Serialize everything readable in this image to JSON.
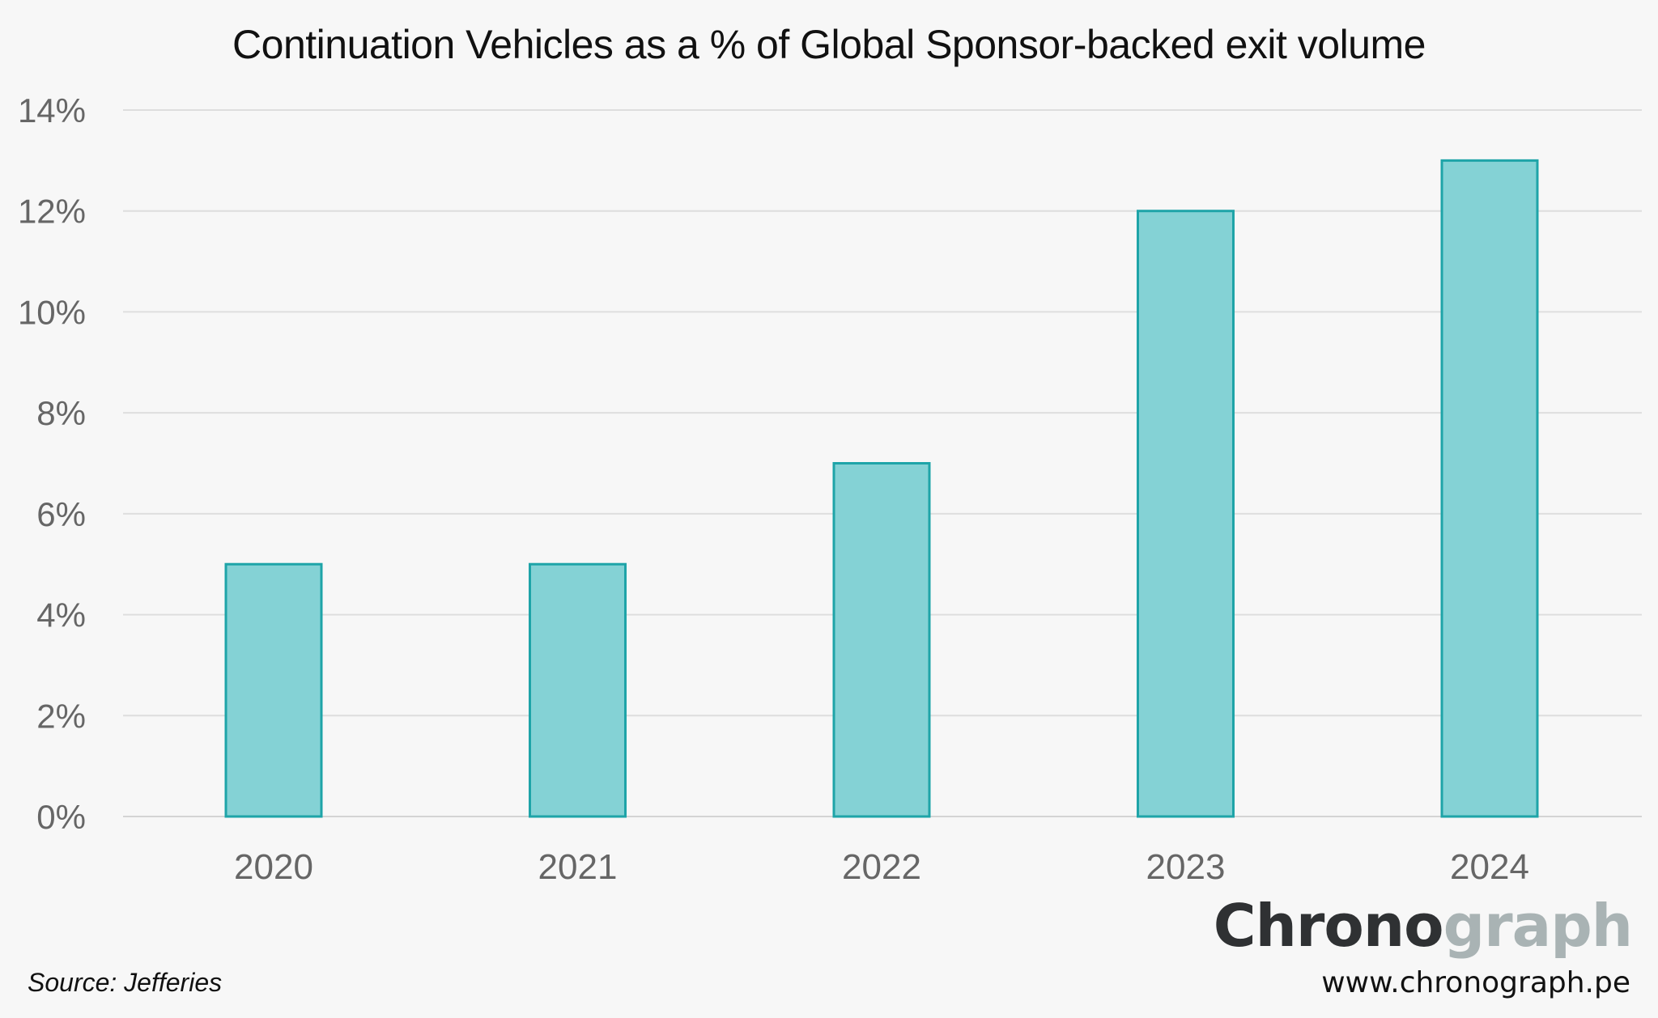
{
  "chart_data": {
    "type": "bar",
    "title": "Continuation Vehicles as a % of Global Sponsor-backed exit volume",
    "categories": [
      "2020",
      "2021",
      "2022",
      "2023",
      "2024"
    ],
    "values": [
      5,
      5,
      7,
      12,
      13
    ],
    "unit": "%",
    "ylim": [
      0,
      14
    ],
    "yticks": [
      0,
      2,
      4,
      6,
      8,
      10,
      12,
      14
    ],
    "ytick_labels": [
      "0%",
      "2%",
      "4%",
      "6%",
      "8%",
      "10%",
      "12%",
      "14%"
    ],
    "xlabel": "",
    "ylabel": "",
    "grid": true,
    "legend": "none"
  },
  "colors": {
    "bar_fill": "#84d2d5",
    "bar_stroke": "#1ea4a8",
    "grid": "#dedede",
    "background": "#f7f7f7"
  },
  "footer": {
    "source": "Source: Jefferies",
    "brand_part1": "Chrono",
    "brand_part2": "graph",
    "url": "www.chronograph.pe"
  }
}
